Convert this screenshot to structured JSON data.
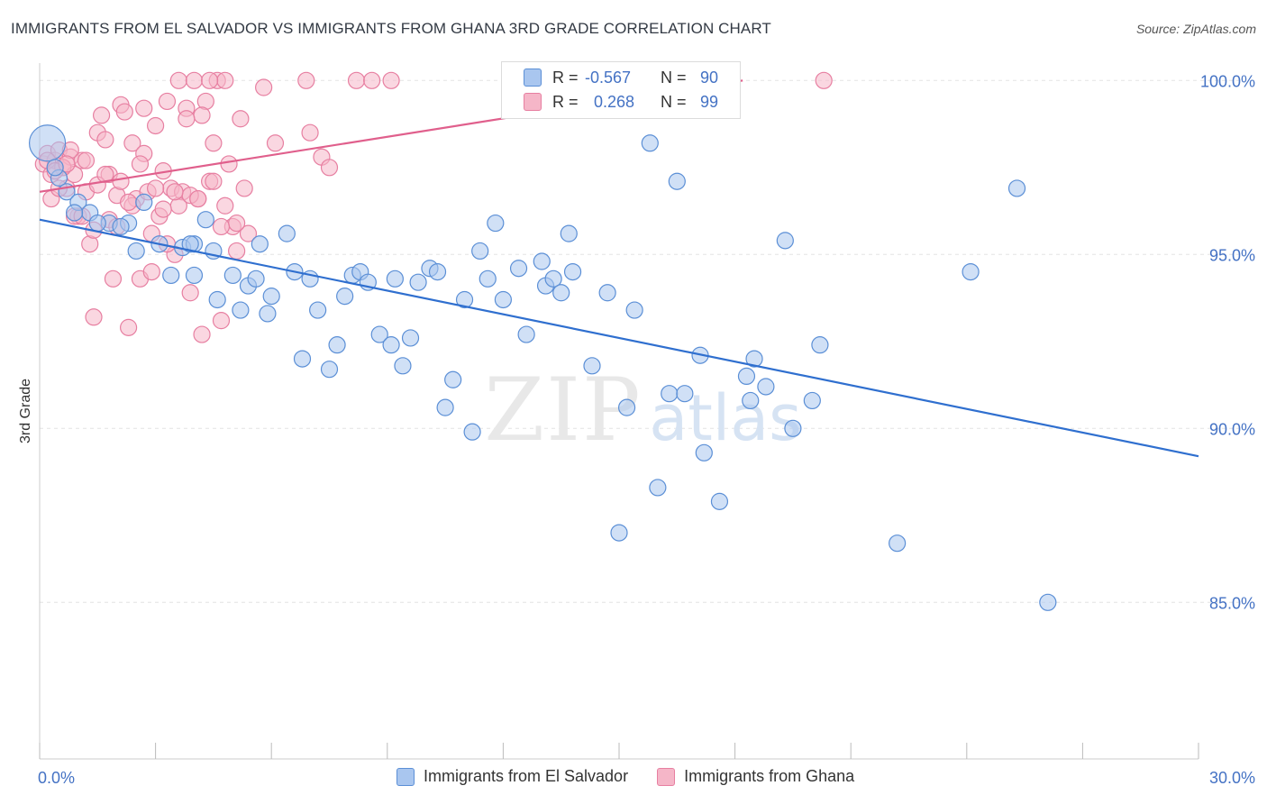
{
  "title": "IMMIGRANTS FROM EL SALVADOR VS IMMIGRANTS FROM GHANA 3RD GRADE CORRELATION CHART",
  "source": "Source: ZipAtlas.com",
  "watermark": {
    "zip": "ZIP",
    "atlas": "atlas"
  },
  "colors": {
    "blue_fill": "#a9c6ef",
    "blue_stroke": "#5b8fd6",
    "blue_line": "#2f6fcf",
    "pink_fill": "#f5b6c8",
    "pink_stroke": "#e77fa1",
    "pink_line": "#e05f8c",
    "axis_text": "#4472c4",
    "grid": "#e4e4e4"
  },
  "stats": {
    "blue": {
      "r_label": "R = ",
      "r_value": "-0.567",
      "n_label": "N = ",
      "n_value": "90"
    },
    "pink": {
      "r_label": "R = ",
      "r_value": "0.268",
      "n_label": "N = ",
      "n_value": "99"
    }
  },
  "legend": {
    "blue": "Immigrants from El Salvador",
    "pink": "Immigrants from Ghana"
  },
  "chart_data": {
    "type": "scatter",
    "xlabel": "",
    "ylabel": "3rd Grade",
    "xlim": [
      0,
      30
    ],
    "ylim": [
      80.5,
      100.5
    ],
    "x_tick_labels": [
      "0.0%",
      "30.0%"
    ],
    "y_ticks": [
      100,
      95,
      90,
      85
    ],
    "y_tick_labels": [
      "100.0%",
      "95.0%",
      "90.0%",
      "85.0%"
    ],
    "grid": true,
    "legend_position": "bottom-center",
    "series": [
      {
        "name": "Immigrants from El Salvador",
        "color": "blue",
        "trend": [
          [
            0,
            96.0
          ],
          [
            30,
            89.2
          ]
        ],
        "points": [
          [
            0.2,
            98.2
          ],
          [
            0.5,
            97.2
          ],
          [
            0.7,
            96.8
          ],
          [
            1.0,
            96.5
          ],
          [
            1.3,
            96.2
          ],
          [
            1.8,
            95.9
          ],
          [
            2.3,
            95.9
          ],
          [
            2.7,
            96.5
          ],
          [
            2.5,
            95.1
          ],
          [
            3.1,
            95.3
          ],
          [
            3.4,
            94.4
          ],
          [
            3.7,
            95.2
          ],
          [
            4.0,
            95.3
          ],
          [
            4.0,
            94.4
          ],
          [
            4.3,
            96.0
          ],
          [
            4.5,
            95.1
          ],
          [
            4.6,
            93.7
          ],
          [
            5.0,
            94.4
          ],
          [
            5.2,
            93.4
          ],
          [
            5.4,
            94.1
          ],
          [
            5.6,
            94.3
          ],
          [
            5.7,
            95.3
          ],
          [
            5.9,
            93.3
          ],
          [
            6.0,
            93.8
          ],
          [
            6.4,
            95.6
          ],
          [
            6.6,
            94.5
          ],
          [
            6.8,
            92.0
          ],
          [
            7.0,
            94.3
          ],
          [
            7.2,
            93.4
          ],
          [
            7.5,
            91.7
          ],
          [
            7.7,
            92.4
          ],
          [
            7.9,
            93.8
          ],
          [
            8.1,
            94.4
          ],
          [
            8.3,
            94.5
          ],
          [
            8.5,
            94.2
          ],
          [
            8.8,
            92.7
          ],
          [
            9.1,
            92.4
          ],
          [
            9.2,
            94.3
          ],
          [
            9.4,
            91.8
          ],
          [
            9.6,
            92.6
          ],
          [
            9.8,
            94.2
          ],
          [
            10.1,
            94.6
          ],
          [
            10.3,
            94.5
          ],
          [
            10.5,
            90.6
          ],
          [
            10.7,
            91.4
          ],
          [
            11.0,
            93.7
          ],
          [
            11.2,
            89.9
          ],
          [
            11.4,
            95.1
          ],
          [
            11.6,
            94.3
          ],
          [
            11.8,
            95.9
          ],
          [
            12.0,
            93.7
          ],
          [
            12.4,
            94.6
          ],
          [
            12.6,
            92.7
          ],
          [
            13.0,
            94.8
          ],
          [
            13.1,
            94.1
          ],
          [
            13.3,
            94.3
          ],
          [
            13.5,
            93.9
          ],
          [
            13.7,
            95.6
          ],
          [
            13.8,
            94.5
          ],
          [
            14.3,
            91.8
          ],
          [
            14.7,
            93.9
          ],
          [
            15.0,
            87.0
          ],
          [
            15.2,
            90.6
          ],
          [
            15.4,
            93.4
          ],
          [
            15.6,
            99.8
          ],
          [
            15.8,
            98.2
          ],
          [
            16.0,
            88.3
          ],
          [
            16.3,
            91.0
          ],
          [
            16.5,
            97.1
          ],
          [
            16.7,
            91.0
          ],
          [
            17.1,
            92.1
          ],
          [
            17.2,
            89.3
          ],
          [
            17.6,
            87.9
          ],
          [
            18.3,
            91.5
          ],
          [
            18.4,
            90.8
          ],
          [
            18.5,
            92.0
          ],
          [
            18.8,
            91.2
          ],
          [
            19.3,
            95.4
          ],
          [
            19.5,
            90.0
          ],
          [
            20.0,
            90.8
          ],
          [
            20.2,
            92.4
          ],
          [
            22.2,
            86.7
          ],
          [
            24.1,
            94.5
          ],
          [
            25.3,
            96.9
          ],
          [
            26.1,
            85.0
          ],
          [
            0.4,
            97.5
          ],
          [
            1.5,
            95.9
          ],
          [
            2.1,
            95.8
          ],
          [
            0.9,
            96.2
          ],
          [
            3.9,
            95.3
          ]
        ]
      },
      {
        "name": "Immigrants from Ghana",
        "color": "pink",
        "trend": [
          [
            0,
            96.8
          ],
          [
            18.2,
            100.0
          ]
        ],
        "points": [
          [
            0.1,
            97.6
          ],
          [
            0.2,
            97.9
          ],
          [
            0.3,
            97.3
          ],
          [
            0.4,
            97.7
          ],
          [
            0.5,
            98.0
          ],
          [
            0.6,
            97.5
          ],
          [
            0.7,
            96.9
          ],
          [
            0.8,
            97.8
          ],
          [
            0.9,
            97.3
          ],
          [
            1.0,
            96.1
          ],
          [
            1.1,
            97.7
          ],
          [
            1.2,
            96.8
          ],
          [
            1.3,
            95.3
          ],
          [
            1.4,
            95.7
          ],
          [
            1.5,
            98.5
          ],
          [
            1.6,
            99.0
          ],
          [
            1.7,
            98.3
          ],
          [
            1.8,
            97.3
          ],
          [
            1.9,
            94.3
          ],
          [
            2.0,
            96.7
          ],
          [
            2.1,
            99.3
          ],
          [
            2.2,
            99.1
          ],
          [
            2.3,
            92.9
          ],
          [
            2.4,
            98.2
          ],
          [
            2.5,
            96.6
          ],
          [
            2.6,
            94.3
          ],
          [
            2.7,
            99.2
          ],
          [
            2.8,
            96.8
          ],
          [
            2.9,
            95.6
          ],
          [
            3.0,
            98.7
          ],
          [
            3.1,
            96.1
          ],
          [
            3.2,
            97.4
          ],
          [
            3.3,
            99.4
          ],
          [
            3.4,
            96.9
          ],
          [
            3.5,
            95.0
          ],
          [
            3.6,
            100.0
          ],
          [
            3.7,
            96.8
          ],
          [
            3.8,
            99.2
          ],
          [
            3.9,
            93.9
          ],
          [
            4.0,
            100.0
          ],
          [
            4.1,
            96.6
          ],
          [
            4.2,
            92.7
          ],
          [
            4.3,
            99.4
          ],
          [
            4.4,
            97.1
          ],
          [
            4.5,
            98.2
          ],
          [
            4.6,
            100.0
          ],
          [
            4.7,
            93.1
          ],
          [
            4.8,
            100.0
          ],
          [
            4.9,
            97.6
          ],
          [
            5.0,
            95.8
          ],
          [
            5.1,
            95.1
          ],
          [
            5.2,
            98.9
          ],
          [
            5.3,
            96.9
          ],
          [
            5.4,
            95.6
          ],
          [
            5.8,
            99.8
          ],
          [
            6.1,
            98.2
          ],
          [
            6.9,
            100.0
          ],
          [
            7.0,
            98.5
          ],
          [
            7.3,
            97.8
          ],
          [
            7.5,
            97.5
          ],
          [
            8.2,
            100.0
          ],
          [
            8.6,
            100.0
          ],
          [
            9.1,
            100.0
          ],
          [
            20.3,
            100.0
          ],
          [
            0.3,
            96.6
          ],
          [
            0.6,
            97.5
          ],
          [
            0.9,
            96.1
          ],
          [
            1.2,
            97.7
          ],
          [
            1.5,
            97.0
          ],
          [
            1.8,
            96.0
          ],
          [
            2.1,
            97.1
          ],
          [
            2.4,
            96.4
          ],
          [
            2.7,
            97.9
          ],
          [
            3.0,
            96.9
          ],
          [
            3.3,
            95.3
          ],
          [
            3.6,
            96.4
          ],
          [
            3.9,
            96.7
          ],
          [
            4.2,
            99.0
          ],
          [
            4.5,
            97.1
          ],
          [
            4.8,
            96.4
          ],
          [
            5.1,
            95.9
          ],
          [
            0.2,
            97.7
          ],
          [
            0.5,
            96.9
          ],
          [
            0.8,
            98.0
          ],
          [
            1.1,
            96.1
          ],
          [
            1.4,
            93.2
          ],
          [
            1.7,
            97.3
          ],
          [
            2.0,
            95.8
          ],
          [
            2.3,
            96.5
          ],
          [
            2.6,
            97.6
          ],
          [
            2.9,
            94.5
          ],
          [
            3.2,
            96.3
          ],
          [
            3.5,
            96.8
          ],
          [
            3.8,
            98.9
          ],
          [
            4.1,
            96.6
          ],
          [
            4.4,
            100.0
          ],
          [
            4.7,
            95.8
          ],
          [
            0.4,
            97.4
          ],
          [
            0.7,
            97.6
          ]
        ]
      }
    ]
  }
}
